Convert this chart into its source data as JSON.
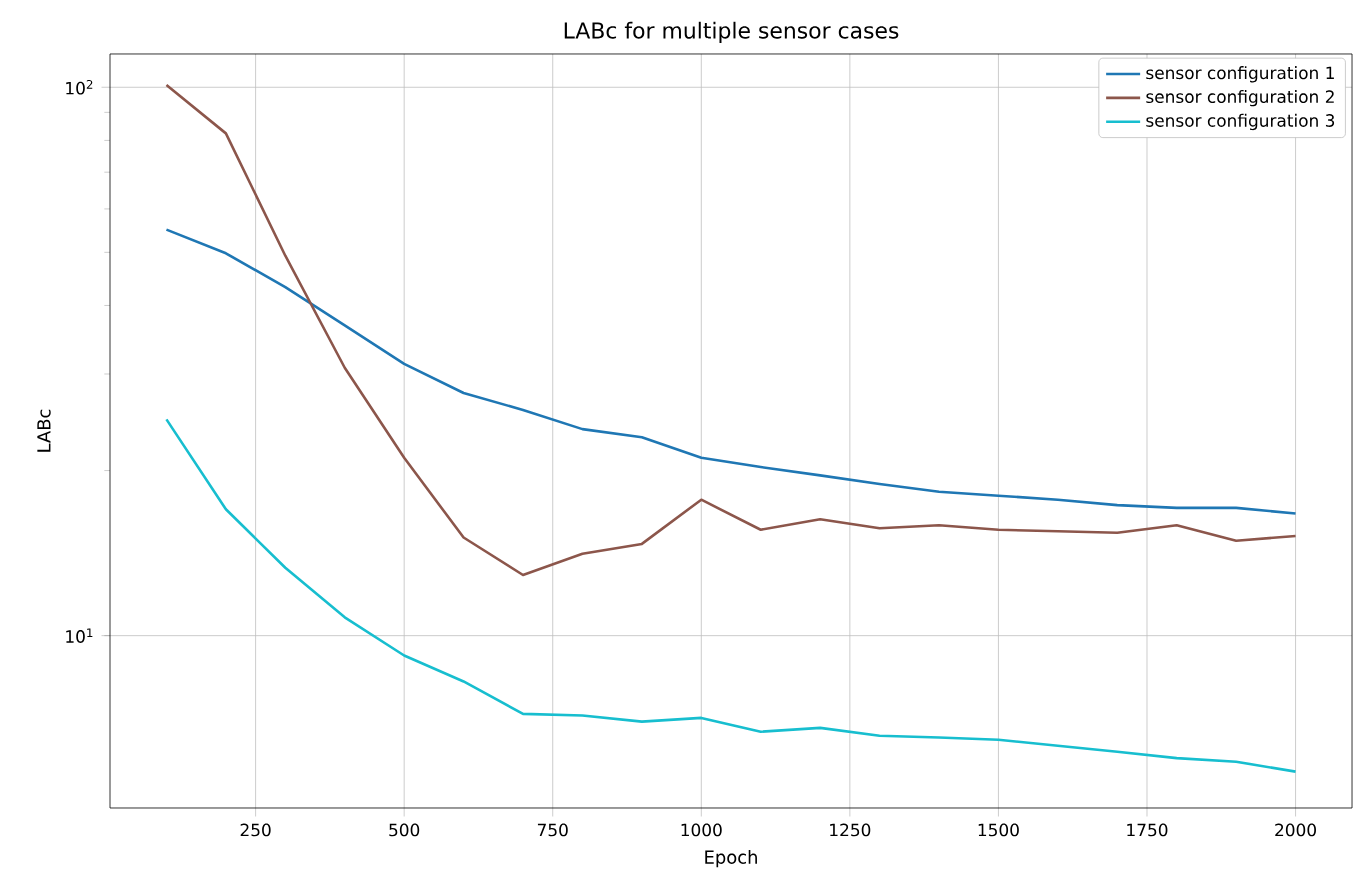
{
  "chart_data": {
    "type": "line",
    "title": "LABc for multiple sensor cases",
    "xlabel": "Epoch",
    "ylabel": "LABc",
    "x": [
      100,
      200,
      300,
      400,
      500,
      600,
      700,
      800,
      900,
      1000,
      1100,
      1200,
      1300,
      1400,
      1500,
      1600,
      1700,
      1800,
      1900,
      2000
    ],
    "series": [
      {
        "name": "sensor configuration 1",
        "color": "#1f77b4",
        "values": [
          55,
          49.8,
          43.2,
          36.8,
          31.3,
          27.7,
          25.8,
          23.8,
          23.0,
          21.1,
          20.3,
          19.6,
          18.9,
          18.3,
          18.0,
          17.7,
          17.3,
          17.1,
          17.1,
          16.7
        ]
      },
      {
        "name": "sensor configuration 2",
        "color": "#8c564b",
        "values": [
          101,
          82.4,
          49.3,
          30.8,
          21.1,
          15.1,
          12.9,
          14.1,
          14.7,
          17.7,
          15.6,
          16.3,
          15.7,
          15.9,
          15.6,
          15.5,
          15.4,
          15.9,
          14.9,
          15.2
        ]
      },
      {
        "name": "sensor configuration 3",
        "color": "#17becf",
        "values": [
          24.8,
          17.0,
          13.3,
          10.8,
          9.2,
          8.25,
          7.2,
          7.15,
          6.97,
          7.08,
          6.68,
          6.79,
          6.57,
          6.52,
          6.46,
          6.3,
          6.14,
          5.98,
          5.89,
          5.65
        ]
      }
    ],
    "xlim": [
      5,
      2095
    ],
    "xticks": [
      250,
      500,
      750,
      1000,
      1250,
      1500,
      1750,
      2000
    ],
    "ylim": [
      4.85,
      115
    ],
    "yticks": [
      {
        "value": 10,
        "label": "10$^{1}$"
      },
      {
        "value": 100,
        "label": "10$^{2}$"
      }
    ],
    "log": "y",
    "grid": true,
    "legend": "top right"
  }
}
